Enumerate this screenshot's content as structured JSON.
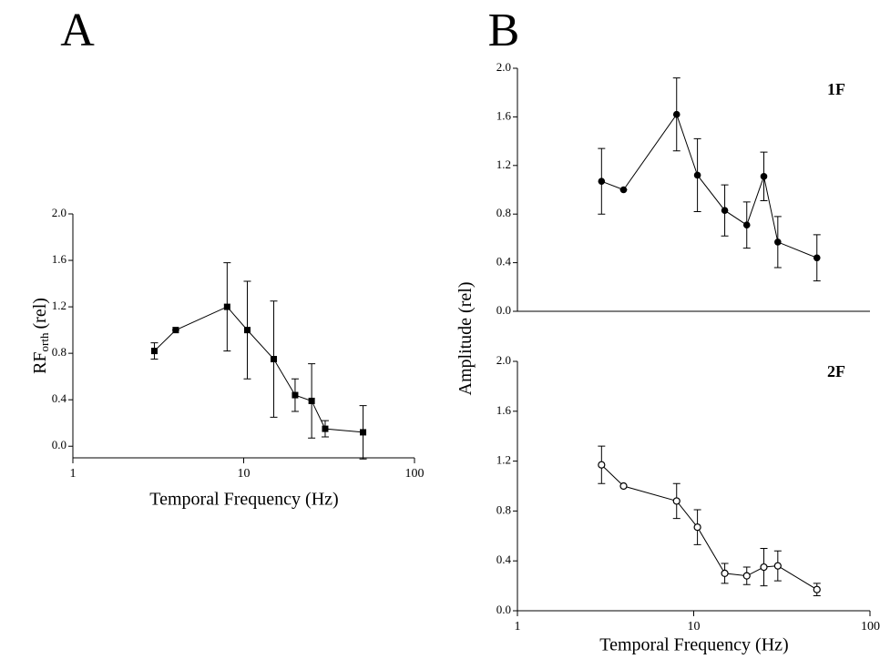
{
  "chart_data": [
    {
      "type": "line",
      "panel": "A",
      "xlabel": "Temporal Frequency (Hz)",
      "ylabel": "RF",
      "ylabel_sub": "orth",
      "ylabel_unit": "(rel)",
      "log_x": true,
      "xlim": [
        1,
        100
      ],
      "xticks": [
        1,
        10,
        100
      ],
      "ylim": [
        -0.1,
        2.0
      ],
      "yticks": [
        {
          "value": 0,
          "label": "0.0"
        },
        0.4,
        0.8,
        1.2,
        1.6,
        {
          "value": 2,
          "label": "2.0"
        }
      ],
      "x": [
        3,
        4,
        8,
        10.5,
        15,
        20,
        25,
        30,
        50
      ],
      "series": [
        {
          "color": "#000000",
          "marker": "square",
          "values": [
            0.82,
            1.0,
            1.2,
            1.0,
            0.75,
            0.44,
            0.39,
            0.15,
            0.12
          ],
          "errors": [
            0.07,
            0,
            0.38,
            0.42,
            0.5,
            0.14,
            0.32,
            0.07,
            0.23
          ]
        }
      ]
    },
    {
      "type": "line",
      "panel": "B",
      "annotation": "1F",
      "ylabel": "Amplitude (rel)",
      "log_x": true,
      "xlim": [
        1,
        100
      ],
      "xticks": [],
      "ylim": [
        0,
        2.0
      ],
      "yticks": [
        {
          "value": 0,
          "label": "0.0"
        },
        0.4,
        0.8,
        1.2,
        1.6,
        {
          "value": 2,
          "label": "2.0"
        }
      ],
      "x": [
        3,
        4,
        8,
        10.5,
        15,
        20,
        25,
        30,
        50
      ],
      "series": [
        {
          "color": "#000000",
          "marker": "circle",
          "values": [
            1.07,
            1.0,
            1.62,
            1.12,
            0.83,
            0.71,
            1.11,
            0.57,
            0.44
          ],
          "errors": [
            0.27,
            0,
            0.3,
            0.3,
            0.21,
            0.19,
            0.2,
            0.21,
            0.19
          ]
        }
      ]
    },
    {
      "type": "line",
      "annotation": "2F",
      "xlabel": "Temporal Frequency (Hz)",
      "log_x": true,
      "xlim": [
        1,
        100
      ],
      "xticks": [
        1,
        10,
        100
      ],
      "ylim": [
        0,
        2.0
      ],
      "yticks": [
        {
          "value": 0,
          "label": "0.0"
        },
        0.4,
        0.8,
        1.2,
        1.6,
        {
          "value": 2,
          "label": "2.0"
        }
      ],
      "x": [
        3,
        4,
        8,
        10.5,
        15,
        20,
        25,
        30,
        50
      ],
      "series": [
        {
          "color": "#000000",
          "marker": "open-circle",
          "values": [
            1.17,
            1.0,
            0.88,
            0.67,
            0.3,
            0.28,
            0.35,
            0.36,
            0.17
          ],
          "errors": [
            0.15,
            0,
            0.14,
            0.14,
            0.08,
            0.07,
            0.15,
            0.12,
            0.05
          ]
        }
      ]
    }
  ]
}
